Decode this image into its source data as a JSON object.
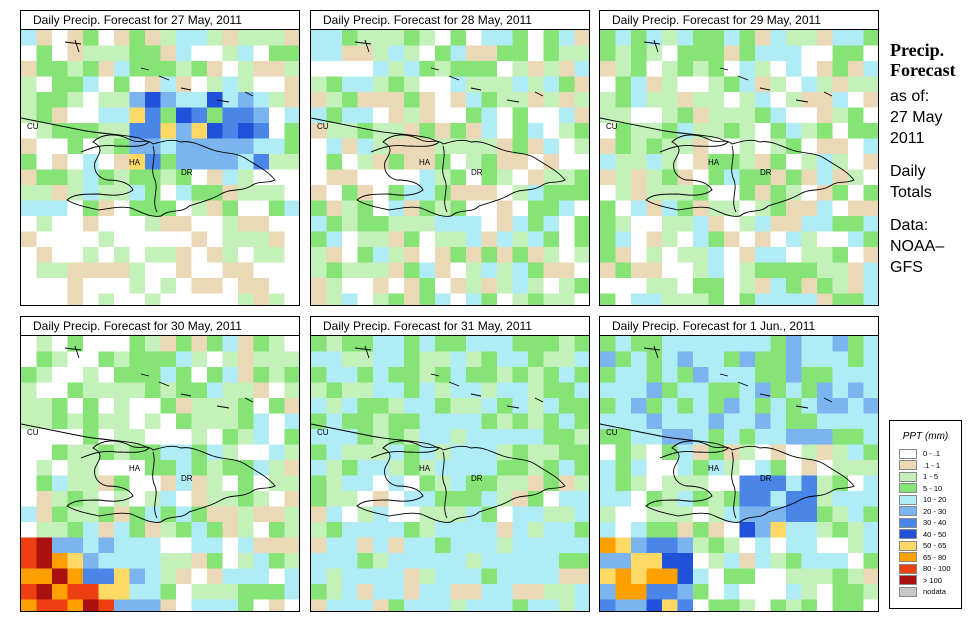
{
  "panels": [
    {
      "title": "Daily Precip. Forecast for  27 May, 2011",
      "seed": 11,
      "bias": "wet_north"
    },
    {
      "title": "Daily Precip. Forecast for  28 May, 2011",
      "seed": 23,
      "bias": "mixed"
    },
    {
      "title": "Daily Precip. Forecast for  29 May, 2011",
      "seed": 37,
      "bias": "mixed"
    },
    {
      "title": "Daily Precip. Forecast for  30 May, 2011",
      "seed": 41,
      "bias": "wet_southwest"
    },
    {
      "title": "Daily Precip. Forecast for  31 May, 2011",
      "seed": 53,
      "bias": "wet_south"
    },
    {
      "title": "Daily Precip. Forecast for  1 Jun., 2011",
      "seed": 67,
      "bias": "wet_sw2"
    }
  ],
  "map_labels": {
    "cuba": "CU",
    "haiti": "HA",
    "dominican_republic": "DR"
  },
  "sidebar": {
    "title_line1": "Precip.",
    "title_line2": "Forecast",
    "as_of": "as of:",
    "date_line1": "27 May",
    "date_line2": "2011",
    "daily_line1": "Daily",
    "daily_line2": "Totals",
    "data_line1": "Data:",
    "data_line2": "NOAA–",
    "data_line3": "GFS"
  },
  "legend": {
    "title": "PPT (mm)",
    "items": [
      {
        "range": "0 - .1",
        "color": "#ffffff"
      },
      {
        "range": ".1 - 1",
        "color": "#ebd8b6"
      },
      {
        "range": "1 - 5",
        "color": "#c4f0ba"
      },
      {
        "range": "5 - 10",
        "color": "#86e476"
      },
      {
        "range": "10 - 20",
        "color": "#b0ecf6"
      },
      {
        "range": "20 - 30",
        "color": "#7cb4f0"
      },
      {
        "range": "30 - 40",
        "color": "#4a86e8"
      },
      {
        "range": "40 - 50",
        "color": "#1f52d8"
      },
      {
        "range": "50 - 65",
        "color": "#ffd965"
      },
      {
        "range": "65 - 80",
        "color": "#ffa000"
      },
      {
        "range": "80 - 100",
        "color": "#ee3f10"
      },
      {
        "range": "> 100",
        "color": "#aa1010"
      },
      {
        "range": "nodata",
        "color": "#c8c8c8"
      }
    ]
  }
}
